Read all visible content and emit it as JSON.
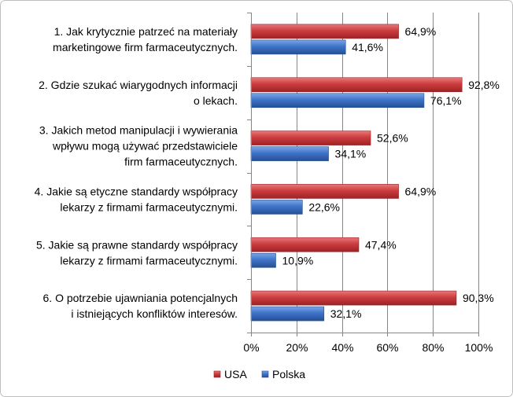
{
  "chart_data": {
    "type": "bar",
    "orientation": "horizontal",
    "categories": [
      [
        "1.   Jak krytycznie patrzeć na materiały",
        "marketingowe firm farmaceutycznych."
      ],
      [
        "2.   Gdzie szukać wiarygodnych informacji",
        "o lekach."
      ],
      [
        "3.   Jakich metod manipulacji i wywierania",
        "wpływu mogą używać przedstawiciele",
        "firm farmaceutycznych."
      ],
      [
        "4.   Jakie są etyczne standardy współpracy",
        "lekarzy z firmami farmaceutycznymi."
      ],
      [
        "5.   Jakie są prawne standardy współpracy",
        "lekarzy z firmami farmaceutycznymi."
      ],
      [
        "6.   O potrzebie ujawniania potencjalnych",
        "i istniejących konfliktów interesów."
      ]
    ],
    "series": [
      {
        "name": "USA",
        "color": "#c0393b",
        "values": [
          64.9,
          92.8,
          52.6,
          64.9,
          47.4,
          90.3
        ],
        "labels": [
          "64,9%",
          "92,8%",
          "52,6%",
          "64,9%",
          "47,4%",
          "90,3%"
        ]
      },
      {
        "name": "Polska",
        "color": "#3d72c4",
        "values": [
          41.6,
          76.1,
          34.1,
          22.6,
          10.9,
          32.1
        ],
        "labels": [
          "41,6%",
          "76,1%",
          "34,1%",
          "22,6%",
          "10,9%",
          "32,1%"
        ]
      }
    ],
    "xlim": [
      0,
      100
    ],
    "xticks": [
      0,
      20,
      40,
      60,
      80,
      100
    ],
    "xtick_labels": [
      "0%",
      "20%",
      "40%",
      "60%",
      "80%",
      "100%"
    ],
    "grid": true,
    "legend_position": "bottom"
  }
}
